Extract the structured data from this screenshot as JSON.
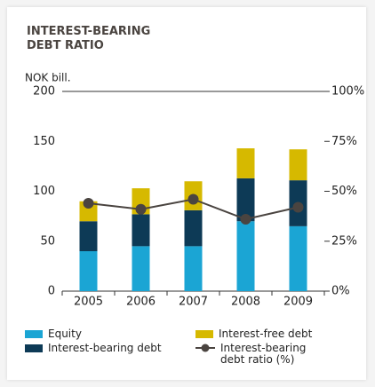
{
  "chart_data": {
    "type": "bar",
    "title": "INTEREST-BEARING DEBT RATIO",
    "ylabel": "NOK bill.",
    "categories": [
      "2005",
      "2006",
      "2007",
      "2008",
      "2009"
    ],
    "series": [
      {
        "name": "Equity",
        "color": "#1ba5d4",
        "values": [
          40,
          45,
          45,
          70,
          65
        ]
      },
      {
        "name": "Interest-bearing debt",
        "color": "#0d3a56",
        "values": [
          30,
          32,
          36,
          43,
          46
        ]
      },
      {
        "name": "Interest-free debt",
        "color": "#d6b900",
        "values": [
          20,
          26,
          29,
          30,
          31
        ]
      },
      {
        "name": "Interest-bearing debt ratio (%)",
        "color": "#4a4440",
        "type": "line",
        "axis": "y2",
        "values": [
          44,
          41,
          46,
          36,
          42
        ]
      }
    ],
    "ylim": [
      0,
      200
    ],
    "yticks": [
      0,
      50,
      100,
      150,
      200
    ],
    "y2lim": [
      0,
      100
    ],
    "y2ticks": [
      {
        "value": 0,
        "label": "0%"
      },
      {
        "value": 25,
        "label": "25%"
      },
      {
        "value": 50,
        "label": "50%"
      },
      {
        "value": 75,
        "label": "75%"
      },
      {
        "value": 100,
        "label": "100%"
      }
    ],
    "stacked": true
  }
}
